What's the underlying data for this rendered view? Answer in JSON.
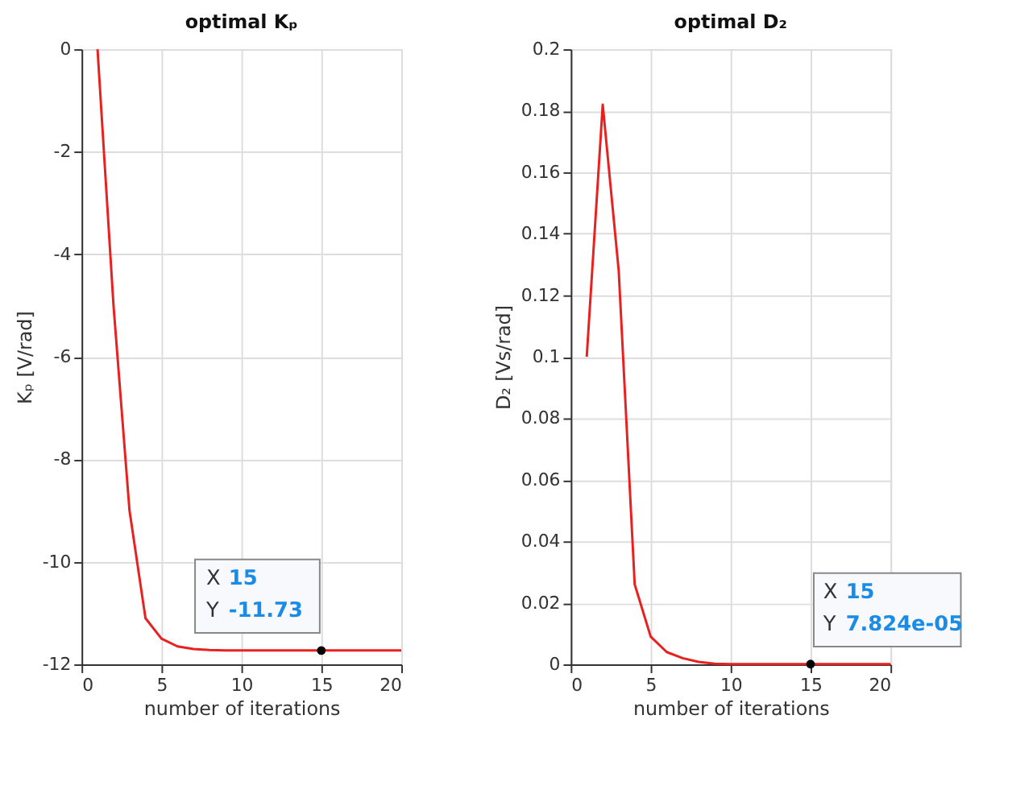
{
  "chart_data": [
    {
      "type": "line",
      "title": "optimal Kₚ",
      "xlabel": "number of iterations",
      "ylabel": "Kₚ [V/rad]",
      "x": [
        1,
        2,
        3,
        4,
        5,
        6,
        7,
        8,
        9,
        10,
        11,
        12,
        13,
        14,
        15,
        16,
        17,
        18,
        19,
        20
      ],
      "series": [
        {
          "color": "#e8201f",
          "values": [
            0,
            -5,
            -9,
            -11.1,
            -11.5,
            -11.65,
            -11.7,
            -11.72,
            -11.73,
            -11.73,
            -11.73,
            -11.73,
            -11.73,
            -11.73,
            -11.73,
            -11.73,
            -11.73,
            -11.73,
            -11.73,
            -11.73
          ]
        }
      ],
      "xlim": [
        0,
        20
      ],
      "xticks": [
        0,
        5,
        10,
        15,
        20
      ],
      "ylim": [
        -12,
        0
      ],
      "yticks": [
        -12,
        -10,
        -8,
        -6,
        -4,
        -2,
        0
      ],
      "grid": true,
      "annotations": [
        {
          "text": "X 15\nY -11.73",
          "x": 15,
          "y": -11.73
        }
      ]
    },
    {
      "type": "line",
      "title": "optimal D₂",
      "xlabel": "number of iterations",
      "ylabel": "D₂ [Vs/rad]",
      "x": [
        1,
        2,
        3,
        4,
        5,
        6,
        7,
        8,
        9,
        10,
        11,
        12,
        13,
        14,
        15,
        16,
        17,
        18,
        19,
        20
      ],
      "series": [
        {
          "color": "#e8201f",
          "values": [
            0.1,
            0.182,
            0.128,
            0.026,
            0.009,
            0.004,
            0.002,
            0.0008,
            0.0002,
            0.0001,
            0.0001,
            0.0001,
            0.0001,
            0.0001,
            0.0001,
            0.0001,
            0.0001,
            0.0001,
            0.0001,
            0.0001
          ]
        }
      ],
      "xlim": [
        0,
        20
      ],
      "xticks": [
        0,
        5,
        10,
        15,
        20
      ],
      "ylim": [
        0,
        0.2
      ],
      "yticks": [
        0,
        0.02,
        0.04,
        0.06,
        0.08,
        0.1,
        0.12,
        0.14,
        0.16,
        0.18,
        0.2
      ],
      "grid": true,
      "annotations": [
        {
          "text": "X 15\nY 7.824e-05",
          "x": 15,
          "y": 7.824e-05
        }
      ]
    }
  ]
}
